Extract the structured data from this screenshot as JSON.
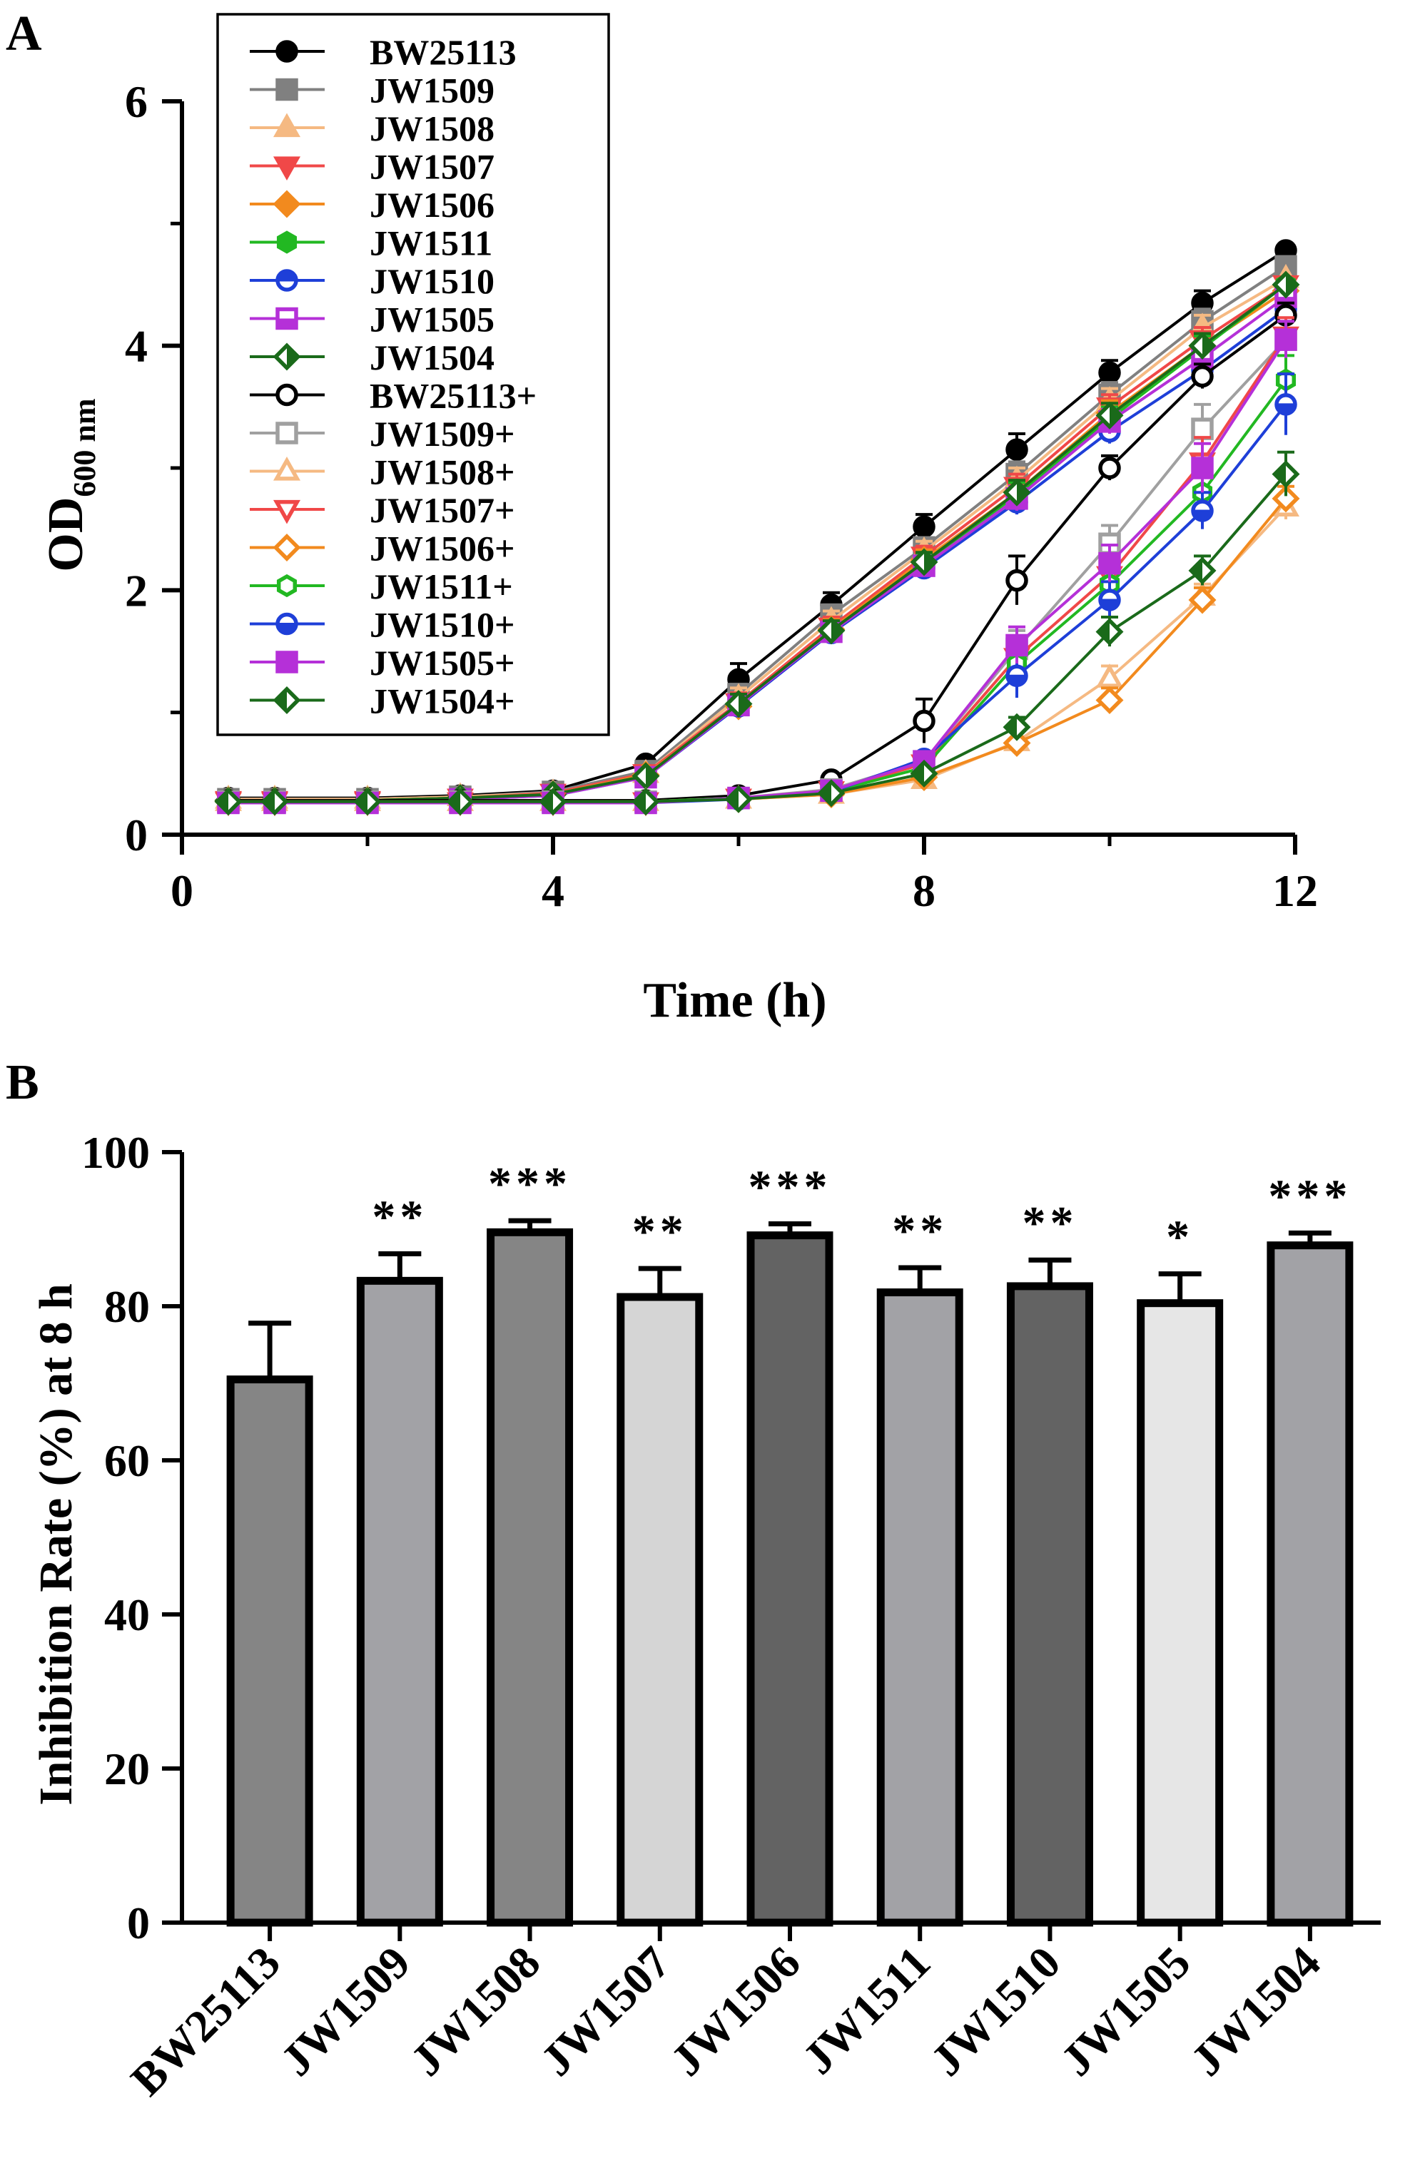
{
  "chart_data": [
    {
      "panel": "A",
      "type": "line",
      "xlabel": "Time (h)",
      "ylabel": "OD",
      "ylabel_sub": "600 nm",
      "xlim": [
        0,
        12
      ],
      "ylim": [
        0,
        6
      ],
      "xticks": [
        0,
        4,
        8,
        12
      ],
      "yticks": [
        0,
        2,
        4,
        6
      ],
      "x": [
        0.5,
        1,
        2,
        3,
        4,
        5,
        6,
        7,
        8,
        9,
        10,
        11,
        11.9
      ],
      "series": [
        {
          "name": "BW25113",
          "color": "#000000",
          "marker": "circle",
          "filled": true,
          "values": [
            0.3,
            0.3,
            0.3,
            0.32,
            0.36,
            0.58,
            1.27,
            1.88,
            2.52,
            3.15,
            3.78,
            4.35,
            4.78
          ],
          "err": [
            0.03,
            0.03,
            0.03,
            0.03,
            0.03,
            0.04,
            0.13,
            0.1,
            0.1,
            0.13,
            0.1,
            0.1,
            0.04
          ]
        },
        {
          "name": "JW1509",
          "color": "#808080",
          "marker": "square",
          "filled": true,
          "values": [
            0.29,
            0.29,
            0.29,
            0.31,
            0.35,
            0.52,
            1.15,
            1.8,
            2.35,
            2.95,
            3.6,
            4.2,
            4.65
          ],
          "err": [
            0.03,
            0.03,
            0.03,
            0.03,
            0.03,
            0.04,
            0.08,
            0.08,
            0.08,
            0.1,
            0.1,
            0.1,
            0.05
          ]
        },
        {
          "name": "JW1508",
          "color": "#F5B982",
          "marker": "triangle",
          "filled": true,
          "values": [
            0.29,
            0.29,
            0.29,
            0.31,
            0.34,
            0.5,
            1.12,
            1.75,
            2.32,
            2.9,
            3.55,
            4.15,
            4.55
          ],
          "err": [
            0.03,
            0.03,
            0.03,
            0.03,
            0.03,
            0.04,
            0.08,
            0.08,
            0.08,
            0.1,
            0.1,
            0.1,
            0.05
          ]
        },
        {
          "name": "JW1507",
          "color": "#F04848",
          "marker": "triangle-down",
          "filled": true,
          "values": [
            0.28,
            0.28,
            0.28,
            0.3,
            0.34,
            0.5,
            1.08,
            1.7,
            2.28,
            2.85,
            3.5,
            4.05,
            4.5
          ],
          "err": [
            0.03,
            0.03,
            0.03,
            0.03,
            0.03,
            0.04,
            0.08,
            0.08,
            0.08,
            0.1,
            0.1,
            0.1,
            0.05
          ]
        },
        {
          "name": "JW1506",
          "color": "#F28A1E",
          "marker": "diamond",
          "filled": true,
          "values": [
            0.28,
            0.28,
            0.28,
            0.3,
            0.33,
            0.49,
            1.05,
            1.68,
            2.25,
            2.8,
            3.45,
            4.0,
            4.45
          ],
          "err": [
            0.03,
            0.03,
            0.03,
            0.03,
            0.03,
            0.04,
            0.08,
            0.08,
            0.08,
            0.1,
            0.1,
            0.1,
            0.05
          ]
        },
        {
          "name": "JW1511",
          "color": "#22B822",
          "marker": "hexagon",
          "filled": true,
          "values": [
            0.28,
            0.28,
            0.28,
            0.3,
            0.33,
            0.48,
            1.06,
            1.66,
            2.22,
            2.78,
            3.4,
            3.98,
            4.5
          ],
          "err": [
            0.03,
            0.03,
            0.03,
            0.03,
            0.03,
            0.04,
            0.08,
            0.08,
            0.08,
            0.1,
            0.1,
            0.1,
            0.05
          ]
        },
        {
          "name": "JW1510",
          "color": "#1E3FD8",
          "marker": "circle-half",
          "filled": false,
          "values": [
            0.27,
            0.27,
            0.27,
            0.29,
            0.32,
            0.47,
            1.05,
            1.65,
            2.18,
            2.72,
            3.3,
            3.8,
            4.3
          ],
          "err": [
            0.03,
            0.03,
            0.03,
            0.03,
            0.03,
            0.04,
            0.08,
            0.08,
            0.08,
            0.1,
            0.1,
            0.1,
            0.05
          ]
        },
        {
          "name": "JW1505",
          "color": "#B530D8",
          "marker": "square-half",
          "filled": false,
          "values": [
            0.27,
            0.27,
            0.27,
            0.29,
            0.32,
            0.47,
            1.06,
            1.66,
            2.2,
            2.75,
            3.38,
            3.9,
            4.4
          ],
          "err": [
            0.03,
            0.03,
            0.03,
            0.03,
            0.03,
            0.04,
            0.08,
            0.08,
            0.08,
            0.1,
            0.1,
            0.1,
            0.05
          ]
        },
        {
          "name": "JW1504",
          "color": "#1A6A1A",
          "marker": "diamond-half",
          "filled": false,
          "values": [
            0.28,
            0.28,
            0.28,
            0.3,
            0.33,
            0.48,
            1.07,
            1.67,
            2.23,
            2.8,
            3.43,
            4.0,
            4.5
          ],
          "err": [
            0.03,
            0.03,
            0.03,
            0.03,
            0.03,
            0.04,
            0.08,
            0.08,
            0.08,
            0.1,
            0.1,
            0.1,
            0.05
          ]
        },
        {
          "name": "BW25113+",
          "color": "#000000",
          "marker": "circle",
          "filled": false,
          "values": [
            0.28,
            0.28,
            0.28,
            0.28,
            0.28,
            0.28,
            0.32,
            0.45,
            0.93,
            2.08,
            3.0,
            3.75,
            4.25
          ],
          "err": [
            0.03,
            0.03,
            0.03,
            0.03,
            0.03,
            0.03,
            0.04,
            0.05,
            0.18,
            0.2,
            0.1,
            0.1,
            0.1
          ]
        },
        {
          "name": "JW1509+",
          "color": "#A0A0A0",
          "marker": "square",
          "filled": false,
          "values": [
            0.27,
            0.27,
            0.27,
            0.27,
            0.27,
            0.27,
            0.3,
            0.37,
            0.6,
            1.52,
            2.38,
            3.32,
            4.05
          ],
          "err": [
            0.03,
            0.03,
            0.03,
            0.03,
            0.03,
            0.03,
            0.03,
            0.04,
            0.05,
            0.15,
            0.15,
            0.2,
            0.15
          ]
        },
        {
          "name": "JW1508+",
          "color": "#F5B982",
          "marker": "triangle",
          "filled": false,
          "values": [
            0.27,
            0.27,
            0.27,
            0.27,
            0.27,
            0.27,
            0.29,
            0.33,
            0.45,
            0.76,
            1.28,
            1.95,
            2.68
          ],
          "err": [
            0.03,
            0.03,
            0.03,
            0.03,
            0.03,
            0.03,
            0.03,
            0.03,
            0.04,
            0.06,
            0.1,
            0.1,
            0.1
          ]
        },
        {
          "name": "JW1507+",
          "color": "#F04848",
          "marker": "triangle-down",
          "filled": false,
          "values": [
            0.27,
            0.27,
            0.27,
            0.27,
            0.27,
            0.27,
            0.3,
            0.36,
            0.58,
            1.45,
            2.12,
            3.05,
            4.08
          ],
          "err": [
            0.03,
            0.03,
            0.03,
            0.03,
            0.03,
            0.03,
            0.03,
            0.04,
            0.05,
            0.15,
            0.15,
            0.2,
            0.15
          ]
        },
        {
          "name": "JW1506+",
          "color": "#F28A1E",
          "marker": "diamond",
          "filled": false,
          "values": [
            0.27,
            0.27,
            0.27,
            0.27,
            0.27,
            0.27,
            0.29,
            0.33,
            0.47,
            0.75,
            1.1,
            1.92,
            2.75
          ],
          "err": [
            0.03,
            0.03,
            0.03,
            0.03,
            0.03,
            0.03,
            0.03,
            0.03,
            0.04,
            0.06,
            0.1,
            0.1,
            0.1
          ]
        },
        {
          "name": "JW1511+",
          "color": "#22B822",
          "marker": "hexagon",
          "filled": false,
          "values": [
            0.27,
            0.27,
            0.27,
            0.27,
            0.27,
            0.27,
            0.3,
            0.35,
            0.55,
            1.4,
            2.05,
            2.8,
            3.72
          ],
          "err": [
            0.03,
            0.03,
            0.03,
            0.03,
            0.03,
            0.03,
            0.03,
            0.04,
            0.05,
            0.15,
            0.15,
            0.15,
            0.2
          ]
        },
        {
          "name": "JW1510+",
          "color": "#1E3FD8",
          "marker": "circle-half",
          "filled": true,
          "values": [
            0.26,
            0.26,
            0.26,
            0.26,
            0.26,
            0.26,
            0.29,
            0.35,
            0.62,
            1.3,
            1.92,
            2.65,
            3.52
          ],
          "err": [
            0.03,
            0.03,
            0.03,
            0.03,
            0.03,
            0.03,
            0.03,
            0.04,
            0.05,
            0.18,
            0.15,
            0.15,
            0.25
          ]
        },
        {
          "name": "JW1505+",
          "color": "#B530D8",
          "marker": "square-half",
          "filled": true,
          "values": [
            0.26,
            0.26,
            0.26,
            0.26,
            0.26,
            0.26,
            0.3,
            0.36,
            0.6,
            1.55,
            2.22,
            3.0,
            4.05
          ],
          "err": [
            0.03,
            0.03,
            0.03,
            0.03,
            0.03,
            0.03,
            0.03,
            0.04,
            0.05,
            0.15,
            0.15,
            0.2,
            0.15
          ]
        },
        {
          "name": "JW1504+",
          "color": "#1A6A1A",
          "marker": "diamond-half",
          "filled": true,
          "values": [
            0.27,
            0.27,
            0.27,
            0.27,
            0.27,
            0.27,
            0.29,
            0.34,
            0.5,
            0.88,
            1.66,
            2.16,
            2.95
          ],
          "err": [
            0.03,
            0.03,
            0.03,
            0.03,
            0.03,
            0.03,
            0.03,
            0.03,
            0.04,
            0.08,
            0.12,
            0.12,
            0.18
          ]
        }
      ]
    },
    {
      "panel": "B",
      "type": "bar",
      "ylabel": "Inhibition Rate (%) at 8 h",
      "ylim": [
        0,
        100
      ],
      "yticks": [
        0,
        20,
        40,
        60,
        80,
        100
      ],
      "categories": [
        "BW25113",
        "JW1509",
        "JW1508",
        "JW1507",
        "JW1506",
        "JW1511",
        "JW1510",
        "JW1505",
        "JW1504"
      ],
      "values": [
        70.5,
        83.3,
        89.6,
        81.2,
        89.2,
        81.8,
        82.6,
        80.4,
        87.9
      ],
      "err": [
        7.3,
        3.5,
        1.5,
        3.7,
        1.5,
        3.2,
        3.4,
        3.8,
        1.6
      ],
      "significance": [
        "",
        "**",
        "***",
        "**",
        "***",
        "**",
        "**",
        "*",
        "***"
      ],
      "colors": [
        "#858585",
        "#A2A2A6",
        "#858585",
        "#D5D5D5",
        "#636363",
        "#A2A2A6",
        "#636363",
        "#E6E6E6",
        "#A2A2A6"
      ]
    }
  ]
}
